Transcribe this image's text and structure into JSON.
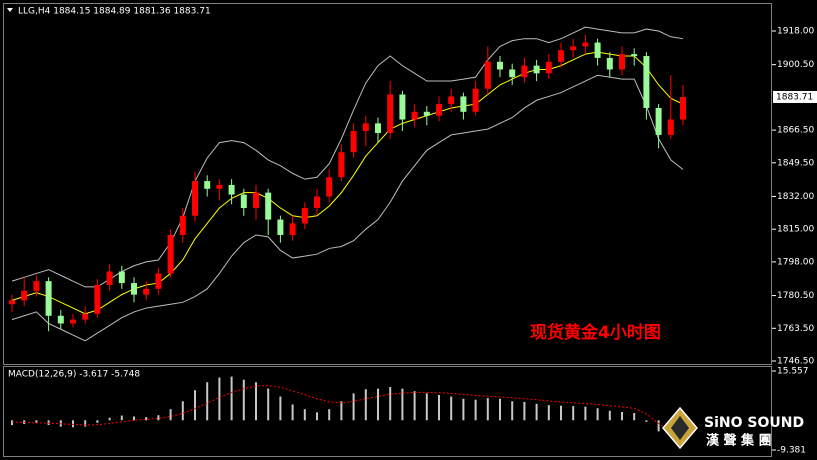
{
  "chart_data": [
    {
      "type": "candlestick",
      "title": "LLG,H4 1884.15 1884.89 1881.36 1883.71",
      "annotation": "现货黄金4小时图",
      "open": [
        1776,
        1778,
        1783,
        1788,
        1770,
        1766,
        1768,
        1771,
        1786,
        1793,
        1787,
        1781,
        1784,
        1792,
        1812,
        1822,
        1840,
        1836,
        1838,
        1833,
        1826,
        1834,
        1820,
        1812,
        1818,
        1826,
        1832,
        1842,
        1855,
        1866,
        1870,
        1865,
        1885,
        1872,
        1876,
        1874,
        1880,
        1884,
        1876,
        1888,
        1902,
        1898,
        1894,
        1900,
        1896,
        1902,
        1908,
        1910,
        1912,
        1904,
        1898,
        1906,
        1905,
        1878,
        1864,
        1872
      ],
      "high": [
        1781,
        1790,
        1791,
        1790,
        1773,
        1771,
        1775,
        1789,
        1797,
        1796,
        1790,
        1788,
        1795,
        1815,
        1826,
        1845,
        1843,
        1841,
        1841,
        1836,
        1838,
        1836,
        1822,
        1822,
        1829,
        1836,
        1846,
        1859,
        1870,
        1874,
        1873,
        1892,
        1887,
        1880,
        1879,
        1884,
        1888,
        1886,
        1892,
        1910,
        1905,
        1901,
        1904,
        1903,
        1906,
        1912,
        1914,
        1916,
        1914,
        1907,
        1910,
        1909,
        1907,
        1880,
        1895,
        1890
      ],
      "low": [
        1772,
        1775,
        1780,
        1762,
        1763,
        1764,
        1766,
        1769,
        1783,
        1784,
        1777,
        1778,
        1781,
        1790,
        1808,
        1819,
        1832,
        1830,
        1828,
        1822,
        1820,
        1812,
        1808,
        1809,
        1815,
        1823,
        1829,
        1840,
        1852,
        1858,
        1860,
        1862,
        1866,
        1868,
        1869,
        1871,
        1876,
        1872,
        1874,
        1885,
        1894,
        1890,
        1891,
        1892,
        1893,
        1899,
        1904,
        1906,
        1900,
        1894,
        1895,
        1900,
        1872,
        1857,
        1862,
        1869
      ],
      "close": [
        1778,
        1783,
        1788,
        1770,
        1766,
        1768,
        1771,
        1786,
        1793,
        1787,
        1781,
        1784,
        1792,
        1812,
        1822,
        1840,
        1836,
        1838,
        1833,
        1826,
        1834,
        1820,
        1812,
        1818,
        1826,
        1832,
        1842,
        1855,
        1866,
        1870,
        1865,
        1885,
        1872,
        1876,
        1874,
        1880,
        1884,
        1876,
        1888,
        1902,
        1898,
        1894,
        1900,
        1896,
        1902,
        1908,
        1910,
        1912,
        1904,
        1898,
        1906,
        1905,
        1878,
        1864,
        1872,
        1883.71
      ],
      "up_color": "#ff0000",
      "down_color": "#98fb98",
      "bands": {
        "color": "#bdbdbd",
        "upper": [
          1788,
          1790,
          1792,
          1794,
          1791,
          1788,
          1785,
          1785,
          1789,
          1793,
          1796,
          1798,
          1799,
          1808,
          1821,
          1840,
          1852,
          1860,
          1861,
          1860,
          1856,
          1851,
          1848,
          1844,
          1841,
          1842,
          1849,
          1862,
          1877,
          1891,
          1900,
          1905,
          1900,
          1896,
          1892,
          1892,
          1892,
          1893,
          1894,
          1903,
          1910,
          1913,
          1914,
          1914,
          1912,
          1914,
          1917,
          1920,
          1919,
          1918,
          1917,
          1917,
          1919,
          1918,
          1915,
          1914
        ],
        "lower": [
          1768,
          1770,
          1772,
          1766,
          1763,
          1760,
          1757,
          1761,
          1765,
          1769,
          1772,
          1774,
          1775,
          1776,
          1777,
          1780,
          1784,
          1792,
          1801,
          1808,
          1812,
          1811,
          1804,
          1800,
          1801,
          1802,
          1805,
          1806,
          1809,
          1815,
          1820,
          1829,
          1840,
          1848,
          1856,
          1860,
          1864,
          1865,
          1866,
          1867,
          1870,
          1873,
          1878,
          1882,
          1884,
          1886,
          1889,
          1892,
          1895,
          1894,
          1893,
          1893,
          1879,
          1862,
          1851,
          1846
        ]
      },
      "ma": {
        "color": "#ffff00",
        "values": [
          1778,
          1780,
          1782,
          1780,
          1777,
          1774,
          1771,
          1773,
          1777,
          1781,
          1784,
          1786,
          1787,
          1792,
          1799,
          1810,
          1818,
          1826,
          1831,
          1834,
          1834,
          1831,
          1826,
          1822,
          1821,
          1822,
          1827,
          1834,
          1843,
          1853,
          1860,
          1867,
          1870,
          1872,
          1874,
          1876,
          1878,
          1879,
          1880,
          1885,
          1890,
          1893,
          1896,
          1898,
          1898,
          1900,
          1903,
          1906,
          1907,
          1906,
          1905,
          1905,
          1899,
          1890,
          1883,
          1880
        ]
      },
      "last_price": 1883.71,
      "ylim": [
        1744.94,
        1932.03
      ],
      "yticks": [
        {
          "value": 1918,
          "label": "1918.00"
        },
        {
          "value": 1900.5,
          "label": "1900.50"
        },
        {
          "value": 1866.5,
          "label": "1866.50"
        },
        {
          "value": 1849.5,
          "label": "1849.50"
        },
        {
          "value": 1832,
          "label": "1832.00"
        },
        {
          "value": 1815,
          "label": "1815.00"
        },
        {
          "value": 1798,
          "label": "1798.00"
        },
        {
          "value": 1780.5,
          "label": "1780.50"
        },
        {
          "value": 1763.5,
          "label": "1763.50"
        },
        {
          "value": 1746.5,
          "label": "1746.50"
        }
      ]
    },
    {
      "type": "macd",
      "title": "MACD(12,26,9) -3.617 -5.748",
      "histogram": [
        -1.5,
        -1.2,
        -0.8,
        -1.5,
        -2.0,
        -2.2,
        -2.0,
        -0.8,
        0.8,
        1.5,
        1.2,
        1.0,
        1.6,
        3.5,
        6.0,
        9.5,
        12.0,
        13.5,
        13.8,
        12.8,
        12.0,
        10.0,
        7.5,
        5.0,
        3.5,
        2.5,
        3.5,
        6.0,
        8.5,
        9.8,
        10.0,
        10.5,
        10.0,
        9.2,
        8.5,
        8.0,
        7.5,
        6.8,
        6.5,
        7.0,
        6.8,
        6.0,
        5.8,
        5.2,
        4.8,
        4.6,
        4.5,
        4.3,
        3.8,
        3.0,
        2.6,
        2.3,
        -0.5,
        -3.5,
        -4.5,
        -3.617
      ],
      "signal": [
        -0.5,
        -0.7,
        -0.8,
        -0.9,
        -1.1,
        -1.3,
        -1.5,
        -1.4,
        -1.0,
        -0.5,
        0.0,
        0.3,
        0.6,
        1.2,
        2.2,
        3.7,
        5.4,
        7.2,
        8.8,
        10.0,
        10.8,
        11.0,
        10.4,
        9.3,
        8.1,
        6.8,
        5.8,
        5.5,
        6.0,
        6.8,
        7.5,
        8.2,
        8.6,
        8.8,
        8.8,
        8.7,
        8.5,
        8.2,
        7.8,
        7.6,
        7.4,
        7.1,
        6.8,
        6.5,
        6.1,
        5.8,
        5.5,
        5.3,
        5.0,
        4.6,
        4.2,
        3.8,
        2.0,
        -1.0,
        -3.5,
        -5.748
      ],
      "histogram_color": "#c8c8c8",
      "signal_color": "#ff0000",
      "ylim": [
        -11.27,
        16.82
      ],
      "yticks": [
        15.557,
        -9.381
      ]
    }
  ],
  "logo": {
    "name": "SiNO SOUND",
    "subtitle": "漢 聲 集 團"
  }
}
